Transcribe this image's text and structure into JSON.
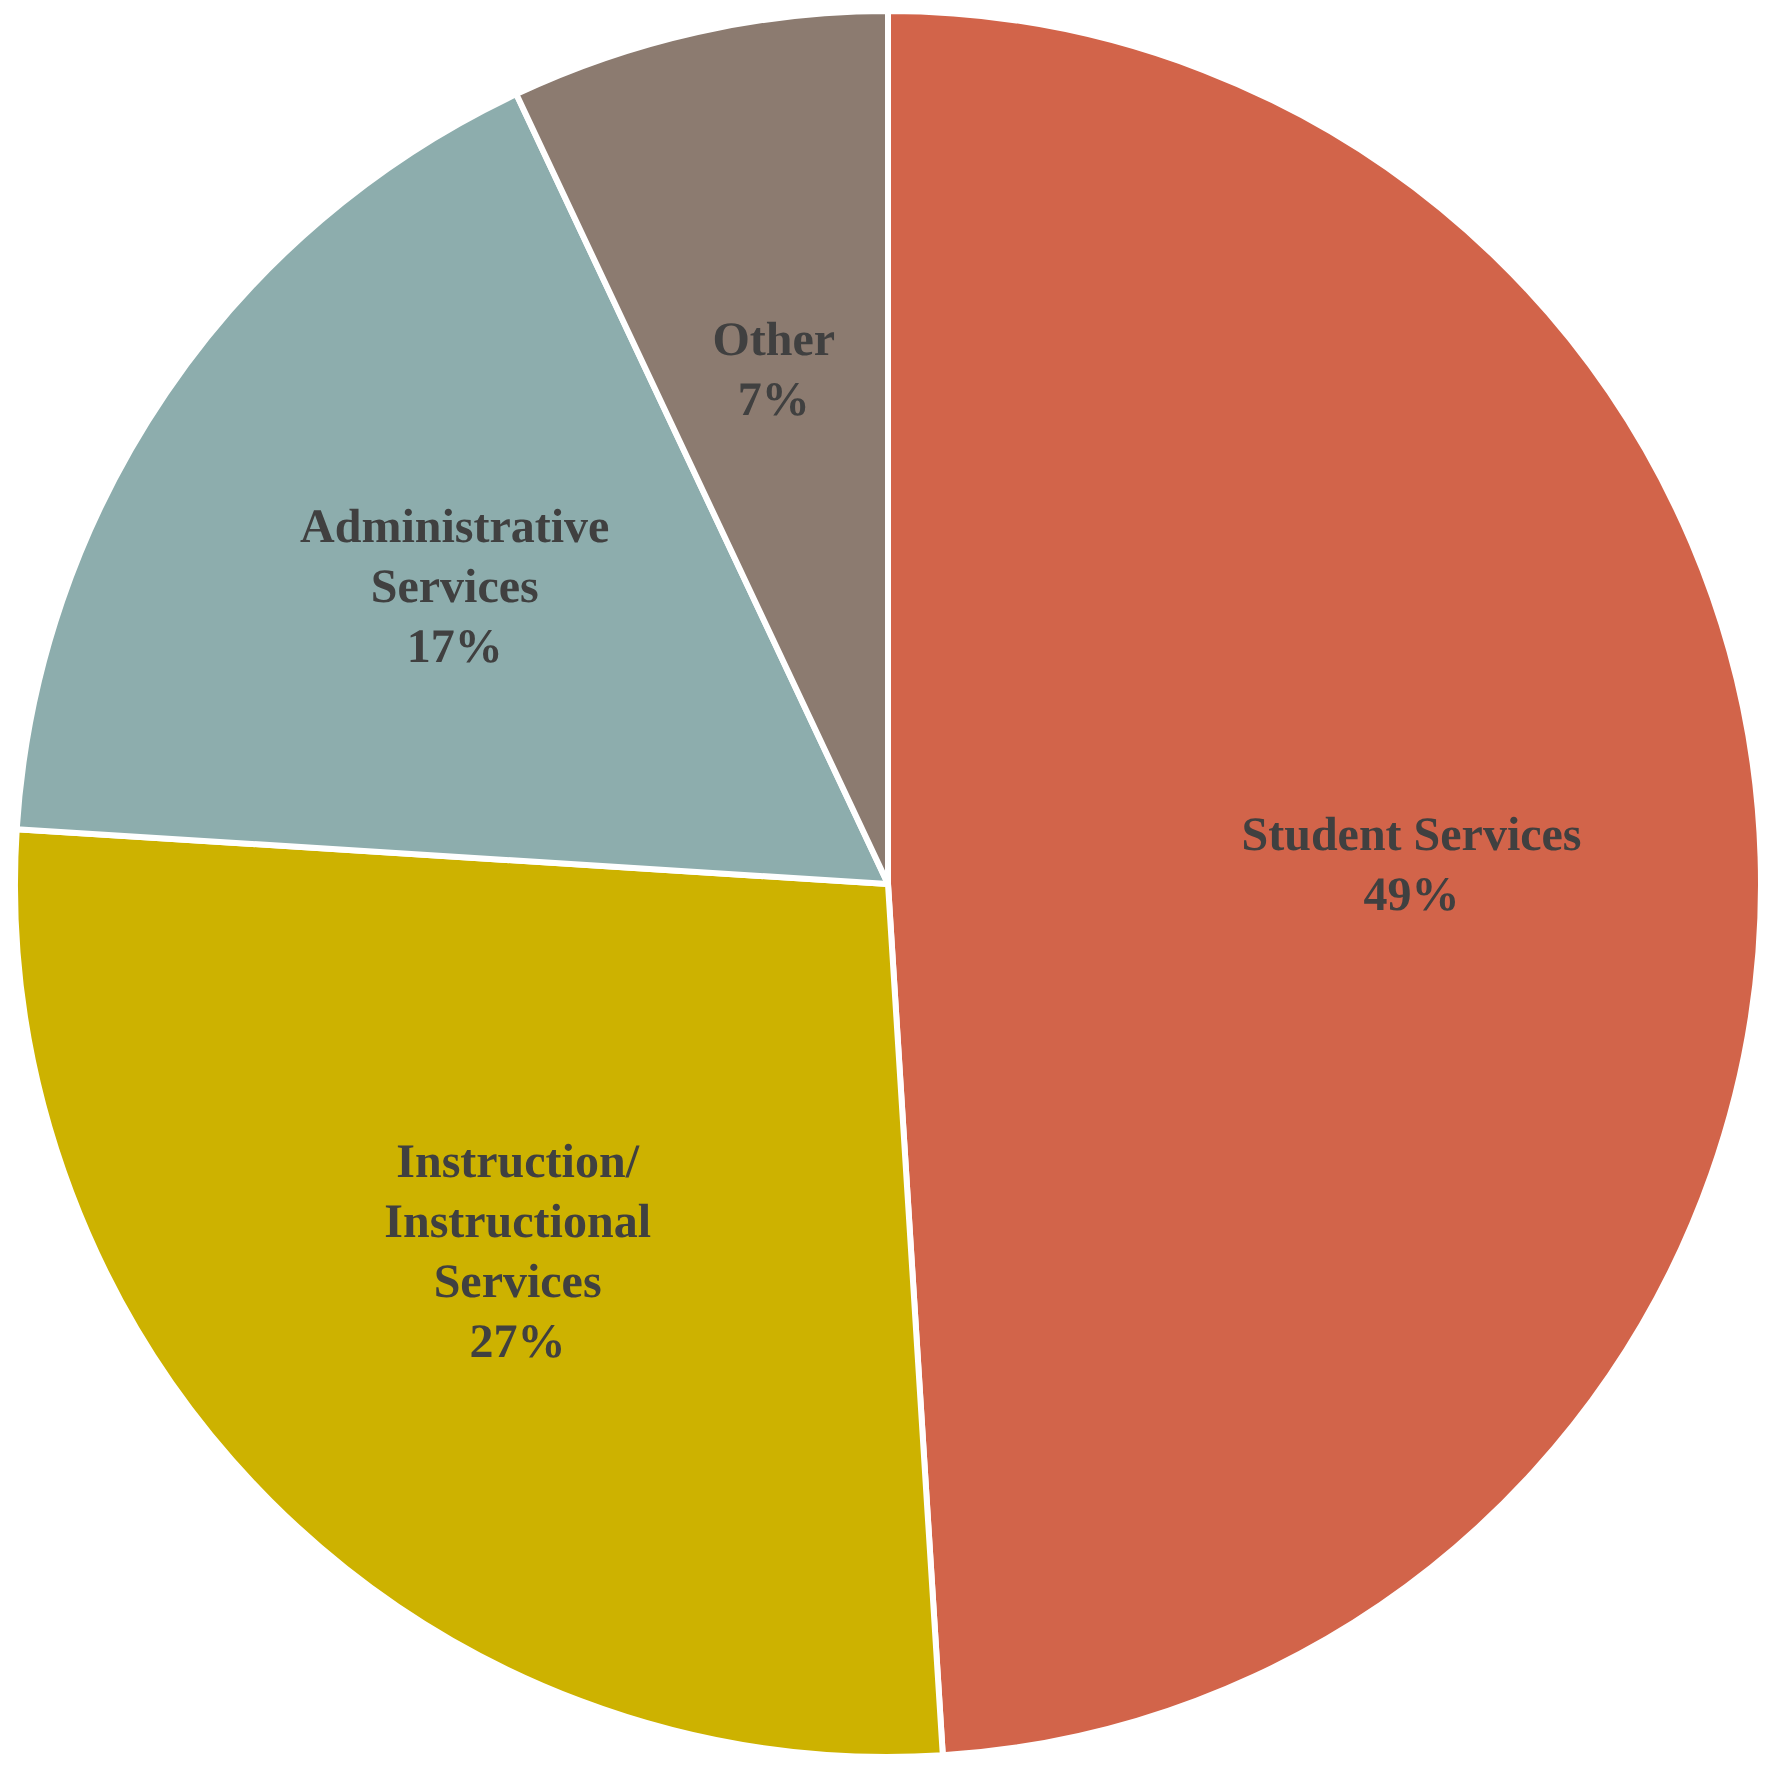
{
  "chart_data": {
    "type": "pie",
    "categories": [
      "Student Services",
      "Instruction/\nInstructional\nServices",
      "Administrative\nServices",
      "Other"
    ],
    "values": [
      49,
      27,
      17,
      7
    ],
    "colors": [
      "#d2644a",
      "#cdb200",
      "#8dadad",
      "#8c7b70"
    ],
    "value_labels": [
      "49%",
      "27%",
      "17%",
      "7%"
    ],
    "legend": false
  }
}
